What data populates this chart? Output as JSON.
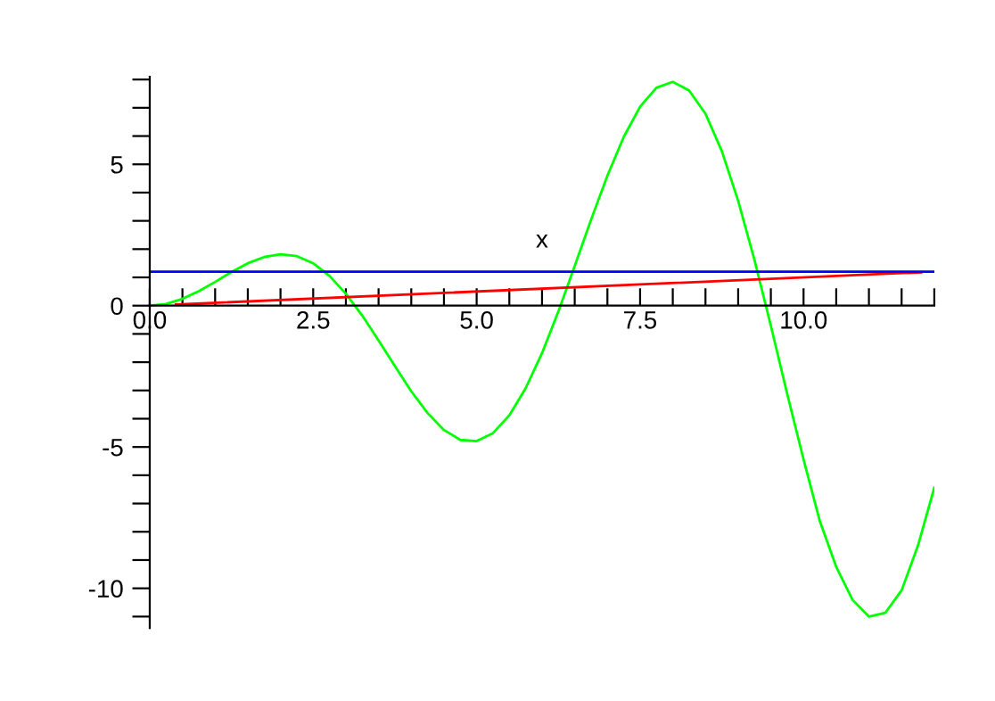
{
  "chart_data": {
    "type": "line",
    "xlabel": "x",
    "xlim": [
      0,
      12
    ],
    "ylim": [
      -11.4,
      8.1
    ],
    "xticks": [
      {
        "value": 0,
        "label": "0.0"
      },
      {
        "value": 0.5,
        "label": null
      },
      {
        "value": 1,
        "label": null
      },
      {
        "value": 1.5,
        "label": null
      },
      {
        "value": 2,
        "label": null
      },
      {
        "value": 2.5,
        "label": "2.5"
      },
      {
        "value": 3,
        "label": null
      },
      {
        "value": 3.5,
        "label": null
      },
      {
        "value": 4,
        "label": null
      },
      {
        "value": 4.5,
        "label": null
      },
      {
        "value": 5,
        "label": "5.0"
      },
      {
        "value": 5.5,
        "label": null
      },
      {
        "value": 6,
        "label": null
      },
      {
        "value": 6.5,
        "label": null
      },
      {
        "value": 7,
        "label": null
      },
      {
        "value": 7.5,
        "label": "7.5"
      },
      {
        "value": 8,
        "label": null
      },
      {
        "value": 8.5,
        "label": null
      },
      {
        "value": 9,
        "label": null
      },
      {
        "value": 9.5,
        "label": null
      },
      {
        "value": 10,
        "label": "10.0"
      },
      {
        "value": 10.5,
        "label": null
      },
      {
        "value": 11,
        "label": null
      },
      {
        "value": 11.5,
        "label": null
      },
      {
        "value": 12,
        "label": null
      }
    ],
    "yticks": [
      {
        "value": -11,
        "label": null
      },
      -10,
      {
        "value": -9,
        "label": null
      },
      {
        "value": -8,
        "label": null
      },
      {
        "value": -7,
        "label": null
      },
      {
        "value": -6,
        "label": null
      },
      -5,
      {
        "value": -4,
        "label": null
      },
      {
        "value": -3,
        "label": null
      },
      {
        "value": -2,
        "label": null
      },
      {
        "value": -1,
        "label": null
      },
      0,
      {
        "value": 1,
        "label": null
      },
      {
        "value": 2,
        "label": null
      },
      {
        "value": 3,
        "label": null
      },
      {
        "value": 4,
        "label": null
      },
      5,
      {
        "value": 6,
        "label": null
      },
      {
        "value": 7,
        "label": null
      },
      {
        "value": 8,
        "label": null
      }
    ],
    "grid": false,
    "marker": "none",
    "line_style": "solid",
    "series": [
      {
        "color": "#00ff00",
        "x": [
          0,
          0.25,
          0.5,
          0.75,
          1,
          1.25,
          1.5,
          1.75,
          2,
          2.25,
          2.5,
          2.75,
          3,
          3.25,
          3.5,
          3.75,
          4,
          4.25,
          4.5,
          4.75,
          5,
          5.25,
          5.5,
          5.75,
          6,
          6.25,
          6.5,
          6.75,
          7,
          7.25,
          7.5,
          7.75,
          8,
          8.25,
          8.5,
          8.75,
          9,
          9.25,
          9.5,
          9.75,
          10,
          10.25,
          10.5,
          10.75,
          11,
          11.25,
          11.5,
          11.75,
          12
        ],
        "values": [
          0,
          0.06,
          0.24,
          0.51,
          0.84,
          1.19,
          1.5,
          1.72,
          1.82,
          1.75,
          1.5,
          1.05,
          0.42,
          -0.35,
          -1.23,
          -2.14,
          -3.03,
          -3.8,
          -4.4,
          -4.75,
          -4.79,
          -4.51,
          -3.88,
          -2.92,
          -1.68,
          -0.21,
          1.4,
          3.04,
          4.6,
          5.97,
          7.04,
          7.71,
          7.92,
          7.61,
          6.79,
          5.47,
          3.71,
          1.61,
          -0.71,
          -3.12,
          -5.44,
          -7.63,
          -9.24,
          -10.41,
          -11.0,
          -10.87,
          -10.07,
          -8.49,
          -6.44
        ]
      },
      {
        "color": "#ff0000",
        "x": [
          0.4,
          11.8
        ],
        "values": [
          0.04,
          1.18
        ]
      },
      {
        "color": "#0000ff",
        "x": [
          0,
          12
        ],
        "values": [
          1.2,
          1.2
        ]
      }
    ]
  }
}
